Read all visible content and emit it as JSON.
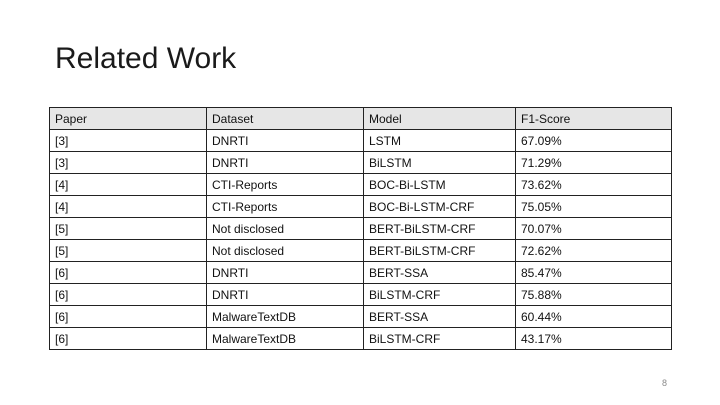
{
  "slide": {
    "title": "Related Work",
    "page_number": "8"
  },
  "table": {
    "headers": [
      "Paper",
      "Dataset",
      "Model",
      "F1-Score"
    ],
    "rows": [
      [
        "[3]",
        "DNRTI",
        "LSTM",
        "67.09%"
      ],
      [
        "[3]",
        "DNRTI",
        "BiLSTM",
        "71.29%"
      ],
      [
        "[4]",
        "CTI-Reports",
        "BOC-Bi-LSTM",
        "73.62%"
      ],
      [
        "[4]",
        "CTI-Reports",
        "BOC-Bi-LSTM-CRF",
        "75.05%"
      ],
      [
        "[5]",
        "Not disclosed",
        "BERT-BiLSTM-CRF",
        "70.07%"
      ],
      [
        "[5]",
        "Not disclosed",
        "BERT-BiLSTM-CRF",
        "72.62%"
      ],
      [
        "[6]",
        "DNRTI",
        "BERT-SSA",
        "85.47%"
      ],
      [
        "[6]",
        "DNRTI",
        "BiLSTM-CRF",
        "75.88%"
      ],
      [
        "[6]",
        "MalwareTextDB",
        "BERT-SSA",
        "60.44%"
      ],
      [
        "[6]",
        "MalwareTextDB",
        "BiLSTM-CRF",
        "43.17%"
      ]
    ]
  },
  "colors": {
    "header_background": "#e6e6e6",
    "border": "#222222",
    "text": "#111111",
    "page_number": "#8a8a8a"
  }
}
